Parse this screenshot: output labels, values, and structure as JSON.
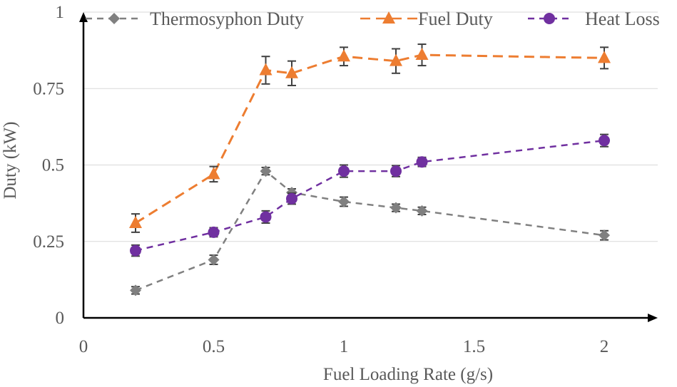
{
  "chart_data": {
    "type": "line",
    "xlabel": "Fuel Loading Rate (g/s)",
    "ylabel": "Duty (kW)",
    "xlim": [
      0,
      2.2
    ],
    "ylim": [
      0,
      1
    ],
    "x_ticks": [
      "0",
      "0.5",
      "1",
      "1.5",
      "2"
    ],
    "y_ticks": [
      "0",
      "0.25",
      "0.5",
      "0.75",
      "1"
    ],
    "grid": "horizontal",
    "legend_position": "top",
    "series": [
      {
        "name": "Thermosyphon Duty",
        "color": "#808080",
        "marker": "diamond",
        "x": [
          0.2,
          0.5,
          0.7,
          0.8,
          1.0,
          1.2,
          1.3,
          2.0
        ],
        "y": [
          0.09,
          0.19,
          0.48,
          0.41,
          0.38,
          0.36,
          0.35,
          0.27
        ],
        "err": [
          0.012,
          0.015,
          0.012,
          0.012,
          0.015,
          0.012,
          0.012,
          0.015
        ]
      },
      {
        "name": "Fuel Duty",
        "color": "#ED7D31",
        "marker": "triangle",
        "x": [
          0.2,
          0.5,
          0.7,
          0.8,
          1.0,
          1.2,
          1.3,
          2.0
        ],
        "y": [
          0.31,
          0.47,
          0.81,
          0.8,
          0.855,
          0.84,
          0.86,
          0.85
        ],
        "err": [
          0.03,
          0.025,
          0.045,
          0.04,
          0.03,
          0.04,
          0.035,
          0.035
        ]
      },
      {
        "name": "Heat Loss",
        "color": "#7030A0",
        "marker": "circle",
        "x": [
          0.2,
          0.5,
          0.7,
          0.8,
          1.0,
          1.2,
          1.3,
          2.0
        ],
        "y": [
          0.22,
          0.28,
          0.33,
          0.39,
          0.48,
          0.48,
          0.51,
          0.58
        ],
        "err": [
          0.018,
          0.015,
          0.02,
          0.018,
          0.02,
          0.018,
          0.015,
          0.02
        ]
      }
    ]
  }
}
